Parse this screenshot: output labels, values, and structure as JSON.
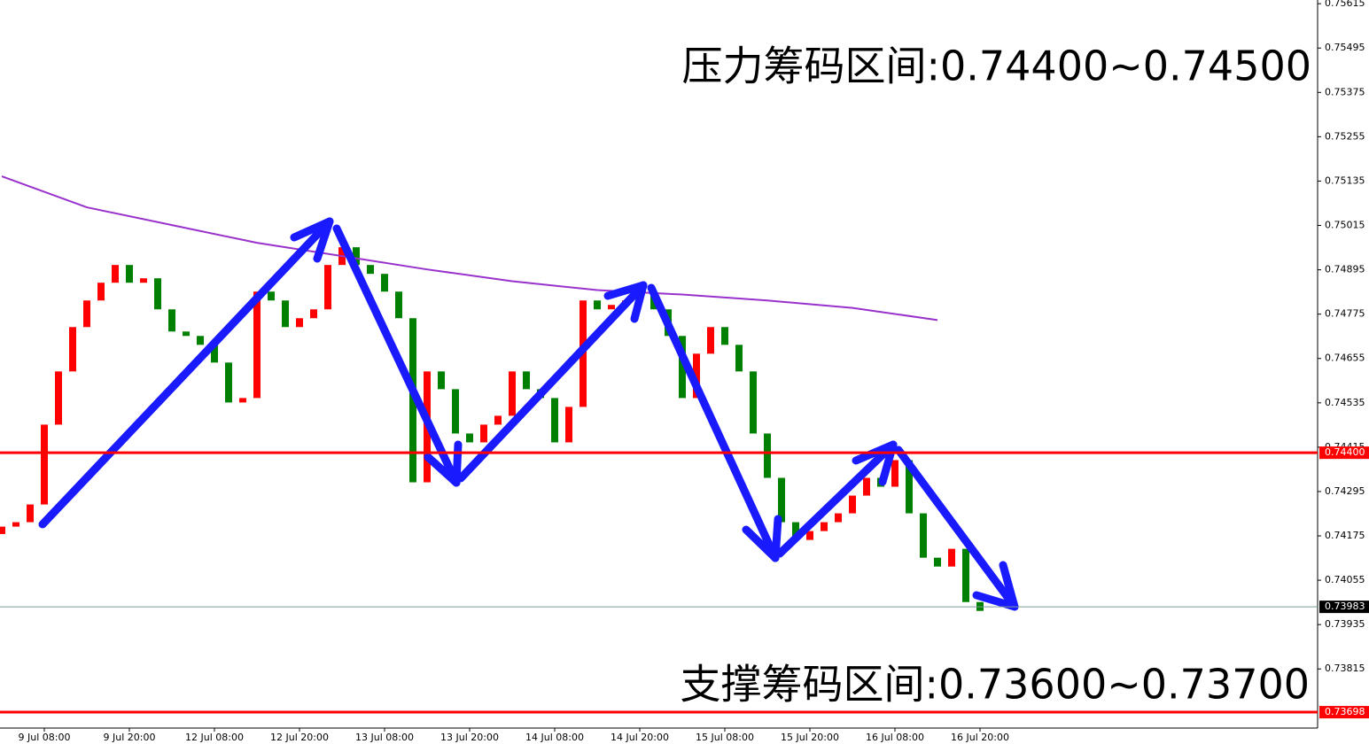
{
  "chart_data": {
    "type": "candlestick",
    "annotations": [
      "压力筹码区间:0.74400~0.74500",
      "支撑筹码区间:0.73600~0.73700"
    ],
    "categories": [
      "9 Jul 08:00",
      "9 Jul 20:00",
      "12 Jul 08:00",
      "12 Jul 20:00",
      "13 Jul 08:00",
      "13 Jul 20:00",
      "14 Jul 08:00",
      "14 Jul 20:00",
      "15 Jul 08:00",
      "15 Jul 20:00",
      "16 Jul 08:00",
      "16 Jul 20:00"
    ],
    "candles": {
      "up_color": "#ff0000",
      "down_color": "#008000",
      "open": [
        0.7418,
        0.742,
        0.74212,
        0.7426,
        0.74476,
        0.7462,
        0.7474,
        0.74812,
        0.7486,
        0.74908,
        0.7486,
        0.74872,
        0.74788,
        0.74728,
        0.74716,
        0.74692,
        0.74644,
        0.74536,
        0.74548,
        0.74836,
        0.74812,
        0.7474,
        0.74764,
        0.74788,
        0.74908,
        0.74956,
        0.74908,
        0.74884,
        0.74836,
        0.74764,
        0.7432,
        0.7462,
        0.74572,
        0.74452,
        0.74428,
        0.74476,
        0.745,
        0.7462,
        0.74572,
        0.74548,
        0.74428,
        0.74524,
        0.74812,
        0.74788,
        0.748,
        0.74812,
        0.74836,
        0.74788,
        0.74716,
        0.74548,
        0.74668,
        0.7474,
        0.74692,
        0.7462,
        0.74452,
        0.74332,
        0.74212,
        0.74164,
        0.74188,
        0.74212,
        0.74236,
        0.74284,
        0.74332,
        0.74308,
        0.7438,
        0.74236,
        0.74116,
        0.74092,
        0.7414,
        0.73996
      ],
      "close": [
        0.742,
        0.74212,
        0.7426,
        0.74476,
        0.7462,
        0.7474,
        0.74812,
        0.7486,
        0.74908,
        0.7486,
        0.74872,
        0.74788,
        0.74728,
        0.74716,
        0.74692,
        0.74644,
        0.74536,
        0.74548,
        0.74836,
        0.74812,
        0.7474,
        0.74764,
        0.74788,
        0.74908,
        0.74956,
        0.74908,
        0.74884,
        0.74836,
        0.74764,
        0.7432,
        0.7462,
        0.74572,
        0.74452,
        0.74428,
        0.74476,
        0.745,
        0.7462,
        0.74572,
        0.74548,
        0.74428,
        0.74524,
        0.74812,
        0.74788,
        0.748,
        0.74812,
        0.74836,
        0.74788,
        0.74716,
        0.74548,
        0.74668,
        0.7474,
        0.74692,
        0.7462,
        0.74452,
        0.74332,
        0.74212,
        0.74164,
        0.74188,
        0.74212,
        0.74236,
        0.74284,
        0.74332,
        0.74308,
        0.7438,
        0.74236,
        0.74116,
        0.74092,
        0.7414,
        0.73996,
        0.73972
      ]
    },
    "moving_average": {
      "color": "#9932cc",
      "values": [
        0.75148,
        0.75064,
        0.75016,
        0.74968,
        0.74932,
        0.74896,
        0.74864,
        0.7484,
        0.74828,
        0.74812,
        0.74792,
        0.74759
      ]
    },
    "levels": [
      {
        "value": 0.744,
        "label": "0.74400",
        "color": "#ff0000"
      },
      {
        "value": 0.73983,
        "label": "0.73983",
        "color": "#000000"
      },
      {
        "value": 0.73698,
        "label": "0.73698",
        "color": "#ff0000"
      }
    ],
    "ylim": [
      0.73655,
      0.75625
    ],
    "yticks": [
      0.75615,
      0.75495,
      0.75375,
      0.75255,
      0.75135,
      0.75015,
      0.74895,
      0.74775,
      0.74655,
      0.74535,
      0.74415,
      0.74295,
      0.74175,
      0.74055,
      0.73935,
      0.73815
    ]
  }
}
